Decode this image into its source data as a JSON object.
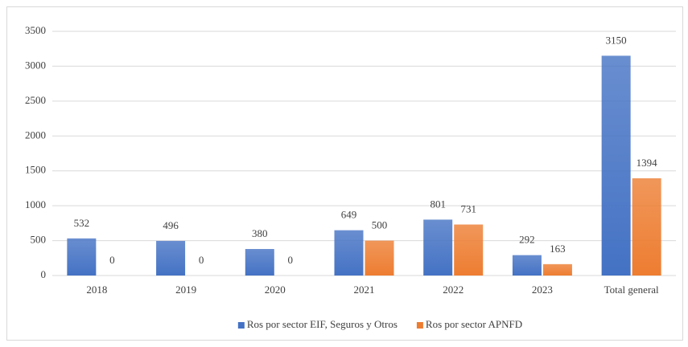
{
  "chart_data": {
    "type": "bar",
    "categories": [
      "2018",
      "2019",
      "2020",
      "2021",
      "2022",
      "2023",
      "Total general"
    ],
    "series": [
      {
        "name": "Ros por sector EIF, Seguros y Otros",
        "color": "#4472c4",
        "values": [
          532,
          496,
          380,
          649,
          801,
          292,
          3150
        ]
      },
      {
        "name": "Ros por sector APNFD",
        "color": "#ed7d31",
        "values": [
          0,
          0,
          0,
          500,
          731,
          163,
          1394
        ]
      }
    ],
    "ylim": [
      0,
      3500
    ],
    "yticks": [
      0,
      500,
      1000,
      1500,
      2000,
      2500,
      3000,
      3500
    ],
    "grid": true,
    "legend": "bottom"
  }
}
